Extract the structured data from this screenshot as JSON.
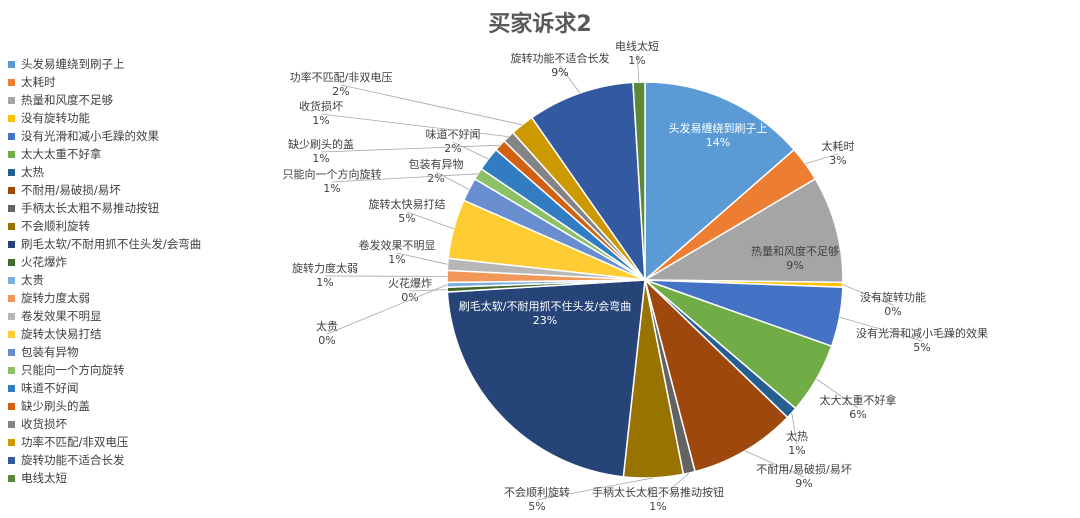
{
  "chart_data": {
    "type": "pie",
    "title": "买家诉求2",
    "legend_position": "left",
    "slices": [
      {
        "name": "头发易缠绕到刷子上",
        "value": 14,
        "percent": "14%",
        "color": "#5B9BD5"
      },
      {
        "name": "太耗时",
        "value": 3,
        "percent": "3%",
        "color": "#ED7D31"
      },
      {
        "name": "热量和风度不足够",
        "value": 9,
        "percent": "9%",
        "color": "#A5A5A5"
      },
      {
        "name": "没有旋转功能",
        "value": 0.4,
        "percent": "0%",
        "color": "#FFC000"
      },
      {
        "name": "没有光滑和减小毛躁的效果",
        "value": 5,
        "percent": "5%",
        "color": "#4472C4"
      },
      {
        "name": "太大太重不好拿",
        "value": 6,
        "percent": "6%",
        "color": "#70AD47"
      },
      {
        "name": "太热",
        "value": 1,
        "percent": "1%",
        "color": "#255E91"
      },
      {
        "name": "不耐用/易破损/易坏",
        "value": 9,
        "percent": "9%",
        "color": "#9E480E"
      },
      {
        "name": "手柄太长太粗不易推动按钮",
        "value": 1,
        "percent": "1%",
        "color": "#636363"
      },
      {
        "name": "不会顺利旋转",
        "value": 5,
        "percent": "5%",
        "color": "#997300"
      },
      {
        "name": "刷毛太软/不耐用抓不住头发/会弯曲",
        "value": 23,
        "percent": "23%",
        "color": "#264478"
      },
      {
        "name": "火花爆炸",
        "value": 0.4,
        "percent": "0%",
        "color": "#43682B"
      },
      {
        "name": "太贵",
        "value": 0.4,
        "percent": "0%",
        "color": "#7CAFDD"
      },
      {
        "name": "旋转力度太弱",
        "value": 1,
        "percent": "1%",
        "color": "#F1975A"
      },
      {
        "name": "卷发效果不明显",
        "value": 1,
        "percent": "1%",
        "color": "#B7B7B7"
      },
      {
        "name": "旋转太快易打结",
        "value": 5,
        "percent": "5%",
        "color": "#FFCD33"
      },
      {
        "name": "包装有异物",
        "value": 2,
        "percent": "2%",
        "color": "#698ED0"
      },
      {
        "name": "只能向一个方向旋转",
        "value": 1,
        "percent": "1%",
        "color": "#8CC168"
      },
      {
        "name": "味道不好闻",
        "value": 2,
        "percent": "2%",
        "color": "#327DC2"
      },
      {
        "name": "缺少刷头的盖",
        "value": 1,
        "percent": "1%",
        "color": "#D26012"
      },
      {
        "name": "收货损坏",
        "value": 1,
        "percent": "1%",
        "color": "#848484"
      },
      {
        "name": "功率不匹配/非双电压",
        "value": 2,
        "percent": "2%",
        "color": "#CC9A00"
      },
      {
        "name": "旋转功能不适合长发",
        "value": 9,
        "percent": "9%",
        "color": "#335AA1"
      },
      {
        "name": "电线太短",
        "value": 1,
        "percent": "1%",
        "color": "#5A8A39"
      }
    ]
  }
}
